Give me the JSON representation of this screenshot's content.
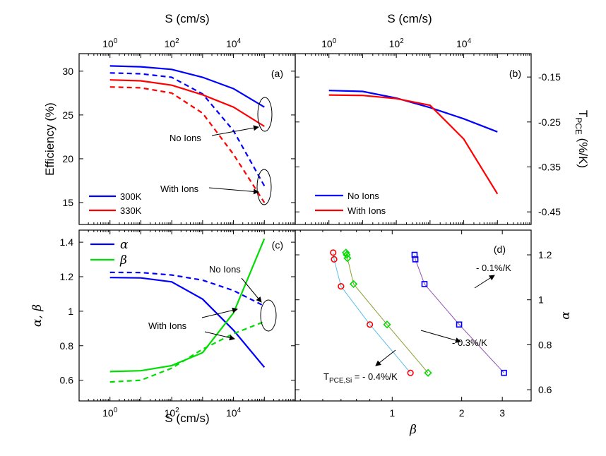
{
  "chart_data": [
    {
      "panel": "a",
      "type": "line",
      "xscale": "log",
      "xlim": [
        0.1,
        1000000
      ],
      "ylim": [
        12.5,
        32
      ],
      "xlabel_top": "S (cm/s)",
      "ylabel": "Efficiency (%)",
      "xticks": [
        {
          "v": 1,
          "b": "10",
          "e": "0"
        },
        {
          "v": 100,
          "b": "10",
          "e": "2"
        },
        {
          "v": 10000,
          "b": "10",
          "e": "4"
        }
      ],
      "yticks": [
        15,
        20,
        25,
        30
      ],
      "panel_label": "(a)",
      "series": [
        {
          "name": "300K",
          "style": "solid",
          "color": "#0000ff",
          "x": [
            1,
            10,
            100,
            1000,
            10000,
            100000
          ],
          "y": [
            30.6,
            30.5,
            30.2,
            29.3,
            28.0,
            25.9
          ]
        },
        {
          "name": "300K",
          "style": "dashed",
          "color": "#0000ff",
          "x": [
            1,
            10,
            100,
            1000,
            10000,
            100000
          ],
          "y": [
            29.8,
            29.7,
            29.3,
            27.4,
            23.2,
            16.9
          ]
        },
        {
          "name": "330K",
          "style": "solid",
          "color": "#ff0000",
          "x": [
            1,
            10,
            100,
            1000,
            10000,
            100000
          ],
          "y": [
            29.0,
            28.9,
            28.4,
            27.3,
            25.9,
            23.7
          ]
        },
        {
          "name": "330K",
          "style": "dashed",
          "color": "#ff0000",
          "x": [
            1,
            10,
            100,
            1000,
            10000,
            100000
          ],
          "y": [
            28.2,
            28.1,
            27.5,
            25.2,
            20.5,
            15.0
          ]
        }
      ],
      "legend": [
        "300K",
        "330K"
      ],
      "annotations": [
        "No Ions",
        "With Ions"
      ]
    },
    {
      "panel": "b",
      "type": "line",
      "xscale": "log",
      "xlim": [
        0.1,
        1000000
      ],
      "ylim": [
        -0.478,
        -0.098
      ],
      "xlabel_top": "S (cm/s)",
      "ylabel_right": "T_PCE (%/K)",
      "xticks": [
        {
          "v": 1,
          "b": "10",
          "e": "0"
        },
        {
          "v": 100,
          "b": "10",
          "e": "2"
        },
        {
          "v": 10000,
          "b": "10",
          "e": "4"
        }
      ],
      "yticks": [
        -0.15,
        -0.25,
        -0.35,
        -0.45
      ],
      "panel_label": "(b)",
      "series": [
        {
          "name": "No Ions",
          "color": "#0000ff",
          "x": [
            1,
            10,
            100,
            1000,
            10000,
            100000
          ],
          "y": [
            -0.18,
            -0.182,
            -0.197,
            -0.218,
            -0.243,
            -0.272
          ]
        },
        {
          "name": "With Ions",
          "color": "#ff0000",
          "x": [
            1,
            10,
            100,
            1000,
            10000,
            100000
          ],
          "y": [
            -0.19,
            -0.191,
            -0.198,
            -0.213,
            -0.288,
            -0.41
          ]
        }
      ],
      "legend": [
        "No Ions",
        "With Ions"
      ]
    },
    {
      "panel": "c",
      "type": "line",
      "xscale": "log",
      "xlim": [
        0.1,
        1000000
      ],
      "ylim": [
        0.48,
        1.47
      ],
      "xlabel": "S (cm/s)",
      "ylabel": "α, β",
      "xticks": [
        {
          "v": 1,
          "b": "10",
          "e": "0"
        },
        {
          "v": 100,
          "b": "10",
          "e": "2"
        },
        {
          "v": 10000,
          "b": "10",
          "e": "4"
        }
      ],
      "yticks": [
        0.6,
        0.8,
        1,
        1.2,
        1.4
      ],
      "panel_label": "(c)",
      "series": [
        {
          "name": "α",
          "style": "solid",
          "color": "#0000ff",
          "x": [
            1,
            10,
            100,
            1000,
            10000,
            100000
          ],
          "y": [
            1.195,
            1.193,
            1.17,
            1.07,
            0.89,
            0.675
          ]
        },
        {
          "name": "α",
          "style": "dashed",
          "color": "#0000ff",
          "x": [
            1,
            10,
            100,
            1000,
            10000,
            100000
          ],
          "y": [
            1.225,
            1.224,
            1.21,
            1.18,
            1.12,
            1.03
          ]
        },
        {
          "name": "β",
          "style": "solid",
          "color": "#00dd00",
          "x": [
            1,
            10,
            100,
            1000,
            10000,
            100000
          ],
          "y": [
            0.65,
            0.655,
            0.685,
            0.76,
            0.99,
            1.42
          ]
        },
        {
          "name": "β",
          "style": "dashed",
          "color": "#00dd00",
          "x": [
            1,
            10,
            100,
            1000,
            10000,
            100000
          ],
          "y": [
            0.59,
            0.6,
            0.67,
            0.78,
            0.87,
            0.94
          ]
        }
      ],
      "legend": [
        "α",
        "β"
      ],
      "annotations": [
        "No Ions",
        "With Ions"
      ]
    },
    {
      "panel": "d",
      "type": "scatter",
      "xscale": "log",
      "xlim": [
        0.38,
        4.0
      ],
      "ylim": [
        0.55,
        1.31
      ],
      "xlabel": "β",
      "ylabel_right": "α",
      "xticks": [
        1,
        2,
        3
      ],
      "yticks": [
        0.6,
        0.8,
        1,
        1.2
      ],
      "yticklabels": [
        "0.6",
        "0.8",
        "1",
        "1.2"
      ],
      "panel_label": "(d)",
      "series": [
        {
          "name": "TPCE,Si -0.4%/K",
          "marker": "circle",
          "color": "#ff0000",
          "line_color": "#5bc0eb",
          "x": [
            0.555,
            0.56,
            0.6,
            0.8,
            1.2
          ],
          "y": [
            1.21,
            1.18,
            1.06,
            0.89,
            0.675
          ]
        },
        {
          "name": "-0.3%/K",
          "marker": "diamond",
          "color": "#00dd00",
          "line_color": "#88a030",
          "x": [
            0.63,
            0.635,
            0.64,
            0.68,
            0.95,
            1.43
          ],
          "y": [
            1.21,
            1.2,
            1.185,
            1.07,
            0.89,
            0.675
          ]
        },
        {
          "name": "-0.1%/K",
          "marker": "square",
          "color": "#0000ff",
          "line_color": "#9050b0",
          "x": [
            1.25,
            1.26,
            1.38,
            1.95,
            3.05
          ],
          "y": [
            1.2,
            1.18,
            1.07,
            0.89,
            0.675
          ]
        }
      ],
      "annotations": [
        "- 0.1%/K",
        "- 0.3%/K",
        "T_PCE,Si = - 0.4%/K"
      ]
    }
  ]
}
